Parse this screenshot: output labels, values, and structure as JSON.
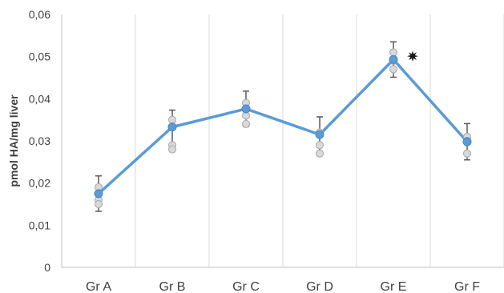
{
  "chart_data": {
    "type": "line",
    "ylabel": "pmol HA/mg liver",
    "ylim": [
      0,
      0.06
    ],
    "yticks": [
      0,
      0.01,
      0.02,
      0.03,
      0.04,
      0.05,
      0.06
    ],
    "ytick_labels": [
      "0",
      "0,01",
      "0,02",
      "0,03",
      "0,04",
      "0,05",
      "0,06"
    ],
    "categories": [
      "Gr A",
      "Gr B",
      "Gr C",
      "Gr D",
      "Gr E",
      "Gr F"
    ],
    "series": [
      {
        "values": [
          0.0175,
          0.0333,
          0.0376,
          0.0315,
          0.0493,
          0.0298
        ],
        "error": [
          0.0042,
          0.004,
          0.0042,
          0.0042,
          0.0042,
          0.0043
        ],
        "color": "#5b9bd5"
      }
    ],
    "individual_points": [
      [
        0.019,
        0.016,
        0.015
      ],
      [
        0.035,
        0.029,
        0.028
      ],
      [
        0.039,
        0.036,
        0.034
      ],
      [
        0.032,
        0.029,
        0.027
      ],
      [
        0.051,
        0.049,
        0.047
      ],
      [
        0.031,
        0.03,
        0.027
      ]
    ],
    "individual_point_color": "#d9d9d9",
    "significance_marker": {
      "category": "Gr E",
      "symbol": "*"
    },
    "grid": {
      "vertical": true,
      "horizontal": false
    }
  }
}
